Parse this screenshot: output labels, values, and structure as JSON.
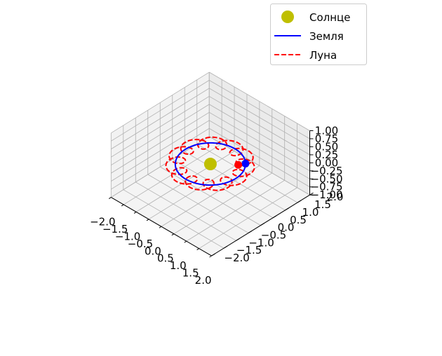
{
  "chart_data": {
    "type": "line",
    "projection": "3d",
    "title": "",
    "xlabel": "",
    "ylabel": "",
    "zlabel": "",
    "xlim": [
      -2.0,
      2.0
    ],
    "ylim": [
      -2.0,
      2.0
    ],
    "zlim": [
      -1.0,
      1.0
    ],
    "x_ticks": [
      "−2.0",
      "−1.5",
      "−1.0",
      "−0.5",
      "0.0",
      "0.5",
      "1.0",
      "1.5",
      "2.0"
    ],
    "y_ticks": [
      "−2.0",
      "−1.5",
      "−1.0",
      "−0.5",
      "0.0",
      "0.5",
      "1.0",
      "1.5",
      "2.0"
    ],
    "z_ticks": [
      "−1.00",
      "−0.75",
      "−0.50",
      "−0.25",
      "0.00",
      "0.25",
      "0.50",
      "0.75",
      "1.00"
    ],
    "grid": true,
    "legend_position": "top-right",
    "series": [
      {
        "name": "Солнце",
        "kind": "point",
        "color": "#bfbf00",
        "x": 0,
        "y": 0,
        "z": 0
      },
      {
        "name": "Земля",
        "kind": "orbit",
        "color": "#0000ff",
        "line_style": "solid",
        "radius": 1.0,
        "z": 0
      },
      {
        "name": "Луна",
        "kind": "epicycle",
        "color": "#ff0000",
        "line_style": "dashed",
        "radius": 1.0,
        "moon_radius": 0.27,
        "turns": 12,
        "z": 0
      }
    ],
    "markers": [
      {
        "label": "Земля",
        "color": "#0000ff",
        "x": 0.707,
        "y": 0.707,
        "z": 0
      },
      {
        "label": "Луна",
        "color": "#ff0000",
        "x": 0.6,
        "y": 0.52,
        "z": 0
      }
    ]
  }
}
